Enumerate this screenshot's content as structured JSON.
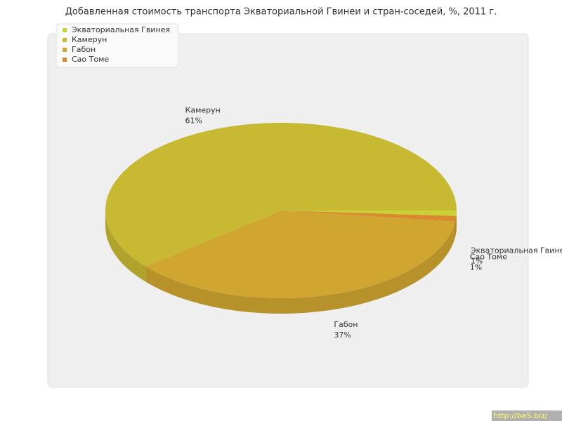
{
  "chart_data": {
    "type": "pie",
    "title": "Добавленная стоимость транспорта Экваториальной Гвинеи и стран-соседей, %, 2011 г.",
    "categories": [
      "Экваториальная Гвинея",
      "Камерун",
      "Габон",
      "Сао Томе"
    ],
    "values": [
      1,
      61,
      37,
      1
    ],
    "value_labels": [
      "1%",
      "61%",
      "37%",
      "1%"
    ],
    "colors": [
      "#c9d136",
      "#c8b932",
      "#d0a630",
      "#d98a2c"
    ],
    "legend": "top-left"
  },
  "watermark": "http://be5.biz/"
}
